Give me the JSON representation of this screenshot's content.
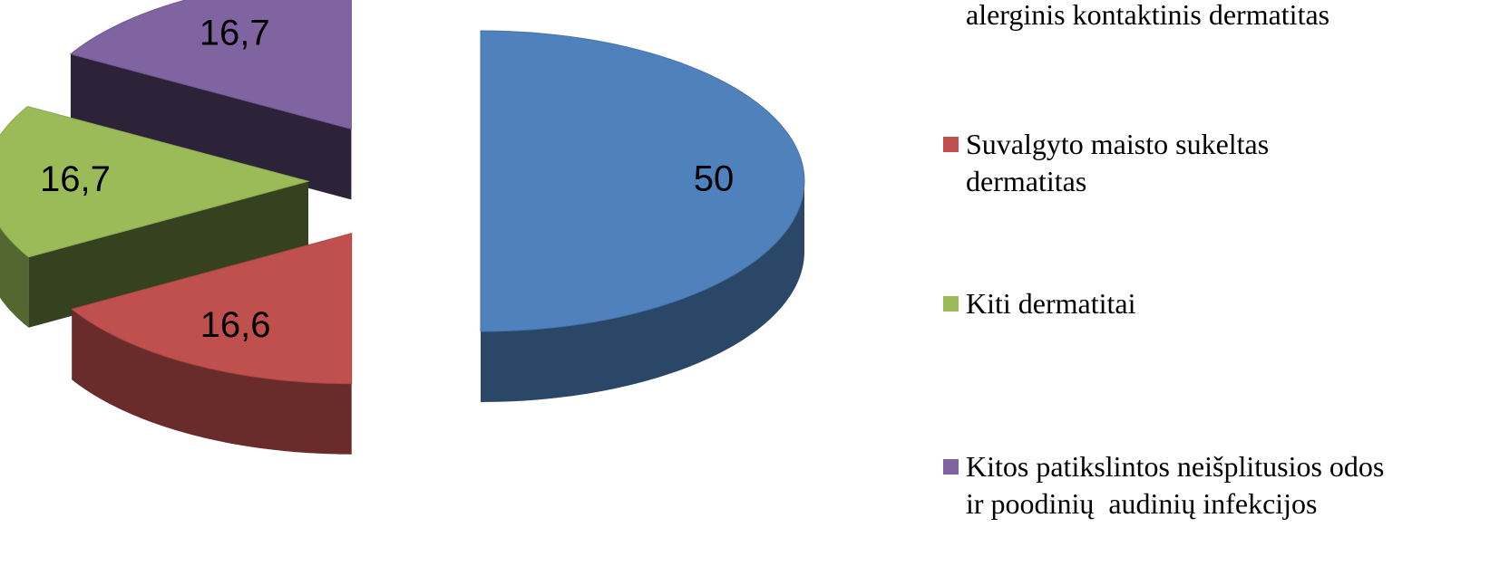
{
  "chart_data": {
    "type": "pie",
    "categories": [
      "alerginis kontaktinis dermatitas",
      "Suvalgyto maisto sukeltas dermatitas",
      "Kiti dermatitai",
      "Kitos patikslintos neišplitusios odos ir poodinių  audinių infekcijos"
    ],
    "values": [
      50,
      16.6,
      16.7,
      16.7
    ],
    "value_labels": [
      "50",
      "16,6",
      "16,7",
      "16,7"
    ],
    "colors": [
      "#4f81bd",
      "#c0504d",
      "#9bbb59",
      "#8064a2"
    ],
    "legend": "right"
  }
}
